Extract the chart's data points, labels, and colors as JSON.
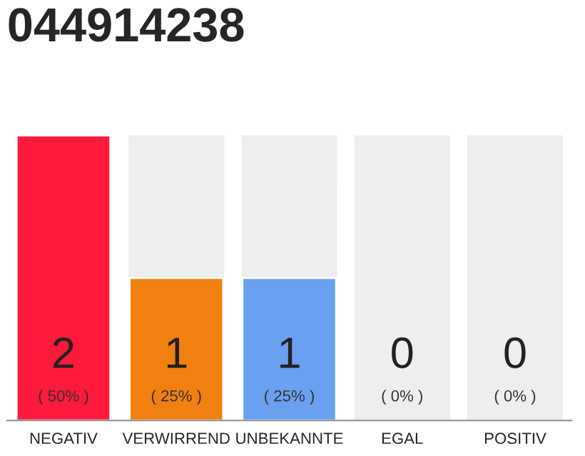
{
  "chart_data": {
    "type": "bar",
    "title": "044914238",
    "categories": [
      "NEGATIV",
      "VERWIRREND",
      "UNBEKANNTE",
      "EGAL",
      "POSITIV"
    ],
    "values": [
      2,
      1,
      1,
      0,
      0
    ],
    "colors": [
      "#ff1a3c",
      "#f28010",
      "#6aa0f0",
      null,
      null
    ],
    "value_labels": [
      "2",
      "1",
      "1",
      "0",
      "0"
    ],
    "tick_labels": "x",
    "grid": false,
    "annotations": [
      {
        "text": "( 50% )",
        "x": "NEGATIV",
        "y": 0
      },
      {
        "text": "( 25% )",
        "x": "VERWIRREND",
        "y": 0
      },
      {
        "text": "( 25% )",
        "x": "UNBEKANNTE",
        "y": 0
      },
      {
        "text": "( 0% )",
        "x": "EGAL",
        "y": 0
      },
      {
        "text": "( 0% )",
        "x": "POSITIV",
        "y": 0
      }
    ]
  }
}
